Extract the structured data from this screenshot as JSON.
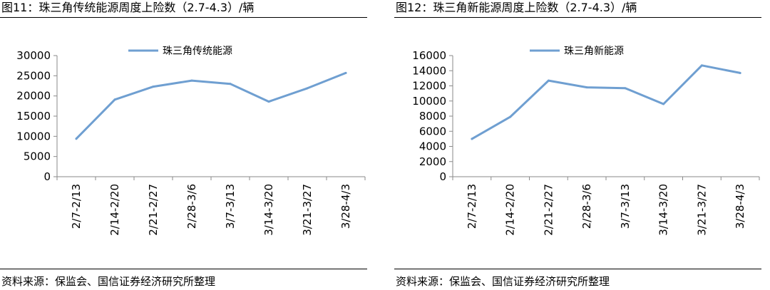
{
  "colors": {
    "series": "#6f9fd1",
    "axis": "#8a8a8a"
  },
  "panels": [
    {
      "title": "图11：珠三角传统能源周度上险数（2.7-4.3）/辆",
      "source": "资料来源：保监会、国信证券经济研究所整理"
    },
    {
      "title": "图12：珠三角新能源周度上险数（2.7-4.3）/辆",
      "source": "资料来源：保监会、国信证券经济研究所整理"
    }
  ],
  "chart_data": [
    {
      "type": "line",
      "categories": [
        "2/7-2/13",
        "2/14-2/20",
        "2/21-2/27",
        "2/28-3/6",
        "3/7-3/13",
        "3/14-3/20",
        "3/21-3/27",
        "3/28-4/3"
      ],
      "series": [
        {
          "name": "珠三角传统能源",
          "values": [
            9400,
            19100,
            22300,
            23800,
            23000,
            18600,
            21900,
            25700
          ]
        }
      ],
      "ylim": [
        0,
        30000
      ],
      "yticks": [
        0,
        5000,
        10000,
        15000,
        20000,
        25000,
        30000
      ],
      "yticklabels": [
        "0",
        "5000",
        "10000",
        "15000",
        "20000",
        "25000",
        "30000"
      ],
      "grid": false,
      "legend": "top-center"
    },
    {
      "type": "line",
      "categories": [
        "2/7-2/13",
        "2/14-2/20",
        "2/21-2/27",
        "2/28-3/6",
        "3/7-3/13",
        "3/14-3/20",
        "3/21-3/27",
        "3/28-4/3"
      ],
      "series": [
        {
          "name": "珠三角新能源",
          "values": [
            5000,
            7900,
            12700,
            11800,
            11700,
            9600,
            14700,
            13700
          ]
        }
      ],
      "ylim": [
        0,
        16000
      ],
      "yticks": [
        0,
        2000,
        4000,
        6000,
        8000,
        10000,
        12000,
        14000,
        16000
      ],
      "yticklabels": [
        "0",
        "2000",
        "4000",
        "6000",
        "8000",
        "10000",
        "12000",
        "14000",
        "16000"
      ],
      "grid": false,
      "legend": "top-center"
    }
  ]
}
